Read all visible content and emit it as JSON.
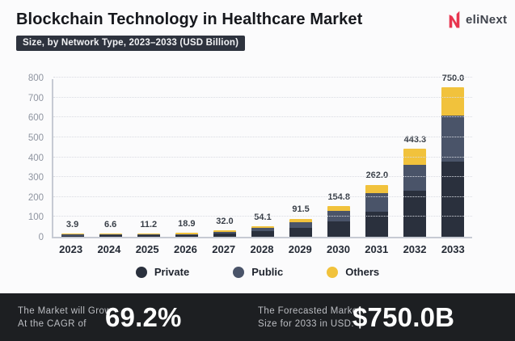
{
  "header": {
    "title": "Blockchain Technology in Healthcare Market",
    "subtitle": "Size, by Network Type, 2023–2033 (USD Billion)",
    "brand": "eliNext"
  },
  "chart_data": {
    "type": "bar",
    "stacked": true,
    "title": "Blockchain Technology in Healthcare Market",
    "subtitle": "Size, by Network Type, 2023–2033 (USD Billion)",
    "categories": [
      "2023",
      "2024",
      "2025",
      "2026",
      "2027",
      "2028",
      "2029",
      "2030",
      "2031",
      "2032",
      "2033"
    ],
    "series": [
      {
        "name": "Private",
        "color": "#2a303d",
        "values": [
          2.0,
          3.3,
          5.6,
          9.5,
          16.0,
          27.1,
          45.8,
          77.4,
          127.0,
          230.0,
          379.0
        ]
      },
      {
        "name": "Public",
        "color": "#4a5469",
        "values": [
          1.2,
          2.0,
          3.4,
          5.7,
          9.6,
          16.2,
          27.5,
          52.4,
          91.0,
          130.0,
          232.0
        ]
      },
      {
        "name": "Others",
        "color": "#f1c23c",
        "values": [
          0.7,
          1.3,
          2.2,
          3.7,
          6.4,
          10.8,
          18.2,
          25.0,
          44.0,
          83.3,
          139.0
        ]
      }
    ],
    "totals": [
      3.9,
      6.6,
      11.2,
      18.9,
      32.0,
      54.1,
      91.5,
      154.8,
      262.0,
      443.3,
      750.0
    ],
    "total_labels": [
      "3.9",
      "6.6",
      "11.2",
      "18.9",
      "32.0",
      "54.1",
      "91.5",
      "154.8",
      "262.0",
      "443.3",
      "750.0"
    ],
    "xlabel": "",
    "ylabel": "",
    "ylim": [
      0,
      800
    ],
    "y_ticks": [
      0,
      100,
      200,
      300,
      400,
      500,
      600,
      700,
      800
    ],
    "grid": "dotted-horizontal",
    "legend_position": "bottom"
  },
  "footer": {
    "stat1": {
      "label_line1": "The Market will Grow",
      "label_line2": "At the CAGR of",
      "value": "69.2%"
    },
    "stat2": {
      "label_line1": "The Forecasted Market",
      "label_line2": "Size for 2033 in USD:",
      "value": "$750.0B"
    }
  },
  "colors": {
    "background": "#fbfbfc",
    "badge_bg": "#2e333e",
    "footer_bg": "#1d1f22",
    "brand_red": "#e8354f",
    "axis_line": "#c6cad3",
    "gridline": "#d9dbe2"
  }
}
